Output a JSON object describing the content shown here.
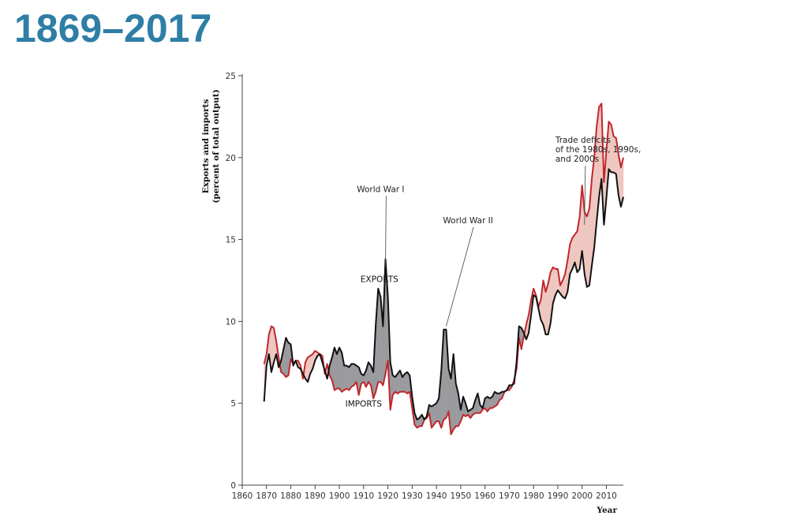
{
  "title": "1869–2017",
  "chart_data": {
    "type": "line",
    "ylabel_line1": "Exports and imports",
    "ylabel_line2": "(percent of total output)",
    "xlabel": "Year",
    "xlim": [
      1860,
      2017
    ],
    "ylim": [
      0,
      25
    ],
    "xticks": [
      1860,
      1870,
      1880,
      1890,
      1900,
      1910,
      1920,
      1930,
      1940,
      1950,
      1960,
      1970,
      1980,
      1990,
      2000,
      2010
    ],
    "yticks": [
      0,
      5,
      10,
      15,
      20,
      25
    ],
    "grid": false,
    "series": [
      {
        "name": "EXPORTS",
        "color": "#111111",
        "points": [
          [
            1869,
            5.1
          ],
          [
            1870,
            7.3
          ],
          [
            1871,
            8.0
          ],
          [
            1872,
            6.9
          ],
          [
            1873,
            7.5
          ],
          [
            1874,
            8.0
          ],
          [
            1875,
            7.2
          ],
          [
            1876,
            7.6
          ],
          [
            1877,
            8.3
          ],
          [
            1878,
            9.0
          ],
          [
            1879,
            8.7
          ],
          [
            1880,
            8.6
          ],
          [
            1881,
            7.3
          ],
          [
            1882,
            7.6
          ],
          [
            1883,
            7.2
          ],
          [
            1884,
            7.1
          ],
          [
            1885,
            6.8
          ],
          [
            1886,
            6.5
          ],
          [
            1887,
            6.3
          ],
          [
            1888,
            6.8
          ],
          [
            1889,
            7.1
          ],
          [
            1890,
            7.6
          ],
          [
            1891,
            7.9
          ],
          [
            1892,
            8.0
          ],
          [
            1893,
            7.5
          ],
          [
            1894,
            7.0
          ],
          [
            1895,
            6.5
          ],
          [
            1896,
            7.3
          ],
          [
            1897,
            7.8
          ],
          [
            1898,
            8.4
          ],
          [
            1899,
            8.0
          ],
          [
            1900,
            8.4
          ],
          [
            1901,
            8.1
          ],
          [
            1902,
            7.3
          ],
          [
            1903,
            7.3
          ],
          [
            1904,
            7.2
          ],
          [
            1905,
            7.4
          ],
          [
            1906,
            7.4
          ],
          [
            1907,
            7.3
          ],
          [
            1908,
            7.2
          ],
          [
            1909,
            6.8
          ],
          [
            1910,
            6.7
          ],
          [
            1911,
            7.0
          ],
          [
            1912,
            7.5
          ],
          [
            1913,
            7.3
          ],
          [
            1914,
            6.9
          ],
          [
            1915,
            9.8
          ],
          [
            1916,
            12.0
          ],
          [
            1917,
            11.5
          ],
          [
            1918,
            9.7
          ],
          [
            1919,
            13.8
          ],
          [
            1920,
            11.5
          ],
          [
            1921,
            7.5
          ],
          [
            1922,
            6.7
          ],
          [
            1923,
            6.6
          ],
          [
            1924,
            6.8
          ],
          [
            1925,
            7.0
          ],
          [
            1926,
            6.6
          ],
          [
            1927,
            6.8
          ],
          [
            1928,
            6.9
          ],
          [
            1929,
            6.7
          ],
          [
            1930,
            5.4
          ],
          [
            1931,
            4.4
          ],
          [
            1932,
            4.0
          ],
          [
            1933,
            4.1
          ],
          [
            1934,
            4.3
          ],
          [
            1935,
            4.0
          ],
          [
            1936,
            4.2
          ],
          [
            1937,
            4.9
          ],
          [
            1938,
            4.8
          ],
          [
            1939,
            4.9
          ],
          [
            1940,
            5.0
          ],
          [
            1941,
            5.3
          ],
          [
            1942,
            7.0
          ],
          [
            1943,
            9.5
          ],
          [
            1944,
            9.5
          ],
          [
            1945,
            7.1
          ],
          [
            1946,
            6.5
          ],
          [
            1947,
            8.0
          ],
          [
            1948,
            6.2
          ],
          [
            1949,
            5.6
          ],
          [
            1950,
            4.6
          ],
          [
            1951,
            5.4
          ],
          [
            1952,
            5.0
          ],
          [
            1953,
            4.5
          ],
          [
            1954,
            4.6
          ],
          [
            1955,
            4.7
          ],
          [
            1956,
            5.2
          ],
          [
            1957,
            5.6
          ],
          [
            1958,
            4.9
          ],
          [
            1959,
            4.7
          ],
          [
            1960,
            5.3
          ],
          [
            1961,
            5.4
          ],
          [
            1962,
            5.3
          ],
          [
            1963,
            5.4
          ],
          [
            1964,
            5.7
          ],
          [
            1965,
            5.6
          ],
          [
            1966,
            5.6
          ],
          [
            1967,
            5.7
          ],
          [
            1968,
            5.7
          ],
          [
            1969,
            5.8
          ],
          [
            1970,
            6.1
          ],
          [
            1971,
            6.1
          ],
          [
            1972,
            6.2
          ],
          [
            1973,
            7.5
          ],
          [
            1974,
            9.7
          ],
          [
            1975,
            9.6
          ],
          [
            1976,
            9.3
          ],
          [
            1977,
            8.9
          ],
          [
            1978,
            9.3
          ],
          [
            1979,
            10.4
          ],
          [
            1980,
            11.6
          ],
          [
            1981,
            11.5
          ],
          [
            1982,
            10.8
          ],
          [
            1983,
            10.1
          ],
          [
            1984,
            9.8
          ],
          [
            1985,
            9.2
          ],
          [
            1986,
            9.2
          ],
          [
            1987,
            9.9
          ],
          [
            1988,
            11.1
          ],
          [
            1989,
            11.6
          ],
          [
            1990,
            11.9
          ],
          [
            1991,
            11.7
          ],
          [
            1992,
            11.5
          ],
          [
            1993,
            11.4
          ],
          [
            1994,
            11.8
          ],
          [
            1995,
            12.9
          ],
          [
            1996,
            13.2
          ],
          [
            1997,
            13.6
          ],
          [
            1998,
            13.0
          ],
          [
            1999,
            13.2
          ],
          [
            2000,
            14.3
          ],
          [
            2001,
            12.9
          ],
          [
            2002,
            12.1
          ],
          [
            2003,
            12.2
          ],
          [
            2004,
            13.4
          ],
          [
            2005,
            14.5
          ],
          [
            2006,
            16.1
          ],
          [
            2007,
            17.6
          ],
          [
            2008,
            18.7
          ],
          [
            2009,
            15.9
          ],
          [
            2010,
            17.5
          ],
          [
            2011,
            19.3
          ],
          [
            2012,
            19.1
          ],
          [
            2013,
            19.1
          ],
          [
            2014,
            19.0
          ],
          [
            2015,
            17.7
          ],
          [
            2016,
            17.0
          ],
          [
            2017,
            17.6
          ]
        ]
      },
      {
        "name": "IMPORTS",
        "color": "#c1272d",
        "points": [
          [
            1869,
            7.4
          ],
          [
            1870,
            8.0
          ],
          [
            1871,
            9.2
          ],
          [
            1872,
            9.7
          ],
          [
            1873,
            9.6
          ],
          [
            1874,
            8.8
          ],
          [
            1875,
            7.8
          ],
          [
            1876,
            6.9
          ],
          [
            1877,
            6.8
          ],
          [
            1878,
            6.6
          ],
          [
            1879,
            6.7
          ],
          [
            1880,
            7.7
          ],
          [
            1881,
            7.4
          ],
          [
            1882,
            7.6
          ],
          [
            1883,
            7.6
          ],
          [
            1884,
            7.3
          ],
          [
            1885,
            6.5
          ],
          [
            1886,
            7.5
          ],
          [
            1887,
            7.8
          ],
          [
            1888,
            7.9
          ],
          [
            1889,
            8.0
          ],
          [
            1890,
            8.2
          ],
          [
            1891,
            8.1
          ],
          [
            1892,
            8.0
          ],
          [
            1893,
            7.9
          ],
          [
            1894,
            6.8
          ],
          [
            1895,
            7.4
          ],
          [
            1896,
            6.7
          ],
          [
            1897,
            6.4
          ],
          [
            1898,
            5.8
          ],
          [
            1899,
            5.9
          ],
          [
            1900,
            5.9
          ],
          [
            1901,
            5.7
          ],
          [
            1902,
            5.8
          ],
          [
            1903,
            5.9
          ],
          [
            1904,
            5.8
          ],
          [
            1905,
            6.0
          ],
          [
            1906,
            6.1
          ],
          [
            1907,
            6.3
          ],
          [
            1908,
            5.5
          ],
          [
            1909,
            6.2
          ],
          [
            1910,
            6.3
          ],
          [
            1911,
            6.0
          ],
          [
            1912,
            6.3
          ],
          [
            1913,
            6.1
          ],
          [
            1914,
            5.3
          ],
          [
            1915,
            5.7
          ],
          [
            1916,
            6.3
          ],
          [
            1917,
            6.3
          ],
          [
            1918,
            6.1
          ],
          [
            1919,
            6.8
          ],
          [
            1920,
            7.6
          ],
          [
            1921,
            4.6
          ],
          [
            1922,
            5.5
          ],
          [
            1923,
            5.7
          ],
          [
            1924,
            5.6
          ],
          [
            1925,
            5.7
          ],
          [
            1926,
            5.7
          ],
          [
            1927,
            5.7
          ],
          [
            1928,
            5.6
          ],
          [
            1929,
            5.7
          ],
          [
            1930,
            4.7
          ],
          [
            1931,
            3.7
          ],
          [
            1932,
            3.5
          ],
          [
            1933,
            3.6
          ],
          [
            1934,
            3.6
          ],
          [
            1935,
            4.0
          ],
          [
            1936,
            4.1
          ],
          [
            1937,
            4.4
          ],
          [
            1938,
            3.5
          ],
          [
            1939,
            3.7
          ],
          [
            1940,
            3.9
          ],
          [
            1941,
            3.9
          ],
          [
            1942,
            3.5
          ],
          [
            1943,
            4.0
          ],
          [
            1944,
            4.1
          ],
          [
            1945,
            4.5
          ],
          [
            1946,
            3.1
          ],
          [
            1947,
            3.4
          ],
          [
            1948,
            3.6
          ],
          [
            1949,
            3.6
          ],
          [
            1950,
            3.9
          ],
          [
            1951,
            4.3
          ],
          [
            1952,
            4.2
          ],
          [
            1953,
            4.3
          ],
          [
            1954,
            4.1
          ],
          [
            1955,
            4.3
          ],
          [
            1956,
            4.4
          ],
          [
            1957,
            4.4
          ],
          [
            1958,
            4.4
          ],
          [
            1959,
            4.6
          ],
          [
            1960,
            4.7
          ],
          [
            1961,
            4.5
          ],
          [
            1962,
            4.7
          ],
          [
            1963,
            4.7
          ],
          [
            1964,
            4.8
          ],
          [
            1965,
            4.9
          ],
          [
            1966,
            5.2
          ],
          [
            1967,
            5.3
          ],
          [
            1968,
            5.7
          ],
          [
            1969,
            5.8
          ],
          [
            1970,
            5.8
          ],
          [
            1971,
            6.0
          ],
          [
            1972,
            6.4
          ],
          [
            1973,
            7.1
          ],
          [
            1974,
            9.0
          ],
          [
            1975,
            8.3
          ],
          [
            1976,
            9.1
          ],
          [
            1977,
            9.8
          ],
          [
            1978,
            10.4
          ],
          [
            1979,
            11.3
          ],
          [
            1980,
            12.0
          ],
          [
            1981,
            11.6
          ],
          [
            1982,
            10.9
          ],
          [
            1983,
            11.3
          ],
          [
            1984,
            12.5
          ],
          [
            1985,
            11.8
          ],
          [
            1986,
            12.3
          ],
          [
            1987,
            13.0
          ],
          [
            1988,
            13.3
          ],
          [
            1989,
            13.2
          ],
          [
            1990,
            13.2
          ],
          [
            1991,
            12.2
          ],
          [
            1992,
            12.5
          ],
          [
            1993,
            12.9
          ],
          [
            1994,
            13.7
          ],
          [
            1995,
            14.7
          ],
          [
            1996,
            15.1
          ],
          [
            1997,
            15.3
          ],
          [
            1998,
            15.5
          ],
          [
            1999,
            16.4
          ],
          [
            2000,
            18.3
          ],
          [
            2001,
            16.7
          ],
          [
            2002,
            16.4
          ],
          [
            2003,
            16.9
          ],
          [
            2004,
            18.7
          ],
          [
            2005,
            20.0
          ],
          [
            2006,
            21.9
          ],
          [
            2007,
            23.1
          ],
          [
            2008,
            23.3
          ],
          [
            2009,
            18.5
          ],
          [
            2010,
            20.4
          ],
          [
            2011,
            22.2
          ],
          [
            2012,
            22.0
          ],
          [
            2013,
            21.3
          ],
          [
            2014,
            21.2
          ],
          [
            2015,
            20.2
          ],
          [
            2016,
            19.4
          ],
          [
            2017,
            20.0
          ]
        ]
      }
    ],
    "annotations": [
      {
        "lines": [
          "World War I"
        ],
        "anchor": [
          1919,
          13.3
        ],
        "text_pos": [
          1917,
          17.9
        ]
      },
      {
        "lines": [
          "World War II"
        ],
        "anchor": [
          1944,
          9.7
        ],
        "text_pos": [
          1953,
          16.0
        ]
      },
      {
        "lines": [
          "Trade deficits",
          "of the 1980s, 1990s,",
          "and 2000s"
        ],
        "anchor": [
          2001,
          15.9
        ],
        "text_pos": [
          1989,
          20.9
        ]
      }
    ],
    "series_labels": [
      {
        "text": "EXPORTS",
        "pos": [
          1916.5,
          12.4
        ]
      },
      {
        "text": "IMPORTS",
        "pos": [
          1910,
          4.8
        ]
      }
    ],
    "fill_colors": {
      "exports_above": "#9a9b9e",
      "imports_above": "#efc7c1"
    }
  }
}
